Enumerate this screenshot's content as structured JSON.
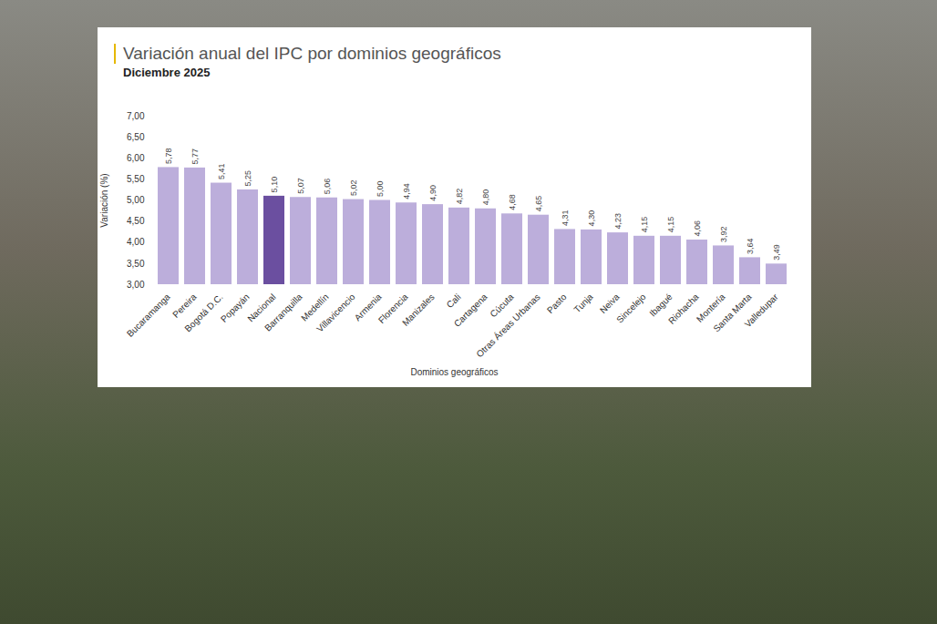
{
  "chart_data": {
    "type": "bar",
    "title": "Variación anual del IPC por dominios geográficos",
    "subtitle": "Diciembre 2025",
    "x_label": "Dominios geográficos",
    "y_label": "Variación (%)",
    "categories": [
      "Bucaramanga",
      "Pereira",
      "Bogotá D.C.",
      "Popayán",
      "Nacional",
      "Barranquilla",
      "Medellín",
      "Villavicencio",
      "Armenia",
      "Florencia",
      "Manizales",
      "Cali",
      "Cartagena",
      "Cúcuta",
      "Otras Áreas Urbanas",
      "Pasto",
      "Tunja",
      "Neiva",
      "Sincelejo",
      "Ibagué",
      "Riohacha",
      "Montería",
      "Santa Marta",
      "Valledupar"
    ],
    "values": [
      5.78,
      5.77,
      5.41,
      5.25,
      5.1,
      5.07,
      5.06,
      5.02,
      5.0,
      4.94,
      4.9,
      4.82,
      4.8,
      4.68,
      4.65,
      4.31,
      4.3,
      4.23,
      4.15,
      4.15,
      4.06,
      3.92,
      3.64,
      3.49
    ],
    "value_labels": [
      "5,78",
      "5,77",
      "5,41",
      "5,25",
      "5,10",
      "5,07",
      "5,06",
      "5,02",
      "5,00",
      "4,94",
      "4,90",
      "4,82",
      "4,80",
      "4,68",
      "4,65",
      "4,31",
      "4,30",
      "4,23",
      "4,15",
      "4,15",
      "4,06",
      "3,92",
      "3,64",
      "3,49"
    ],
    "colors": [
      "#bcaedb",
      "#bcaedb",
      "#bcaedb",
      "#bcaedb",
      "#6b4fa0",
      "#bcaedb",
      "#bcaedb",
      "#bcaedb",
      "#bcaedb",
      "#bcaedb",
      "#bcaedb",
      "#bcaedb",
      "#bcaedb",
      "#bcaedb",
      "#bcaedb",
      "#bcaedb",
      "#bcaedb",
      "#bcaedb",
      "#bcaedb",
      "#bcaedb",
      "#bcaedb",
      "#bcaedb",
      "#bcaedb",
      "#bcaedb"
    ],
    "ylim": [
      3.0,
      7.0
    ],
    "yticks": [
      {
        "value": 3.0,
        "label": "3,00"
      },
      {
        "value": 3.5,
        "label": "3,50"
      },
      {
        "value": 4.0,
        "label": "4,00"
      },
      {
        "value": 4.5,
        "label": "4,50"
      },
      {
        "value": 5.0,
        "label": "5,00"
      },
      {
        "value": 5.5,
        "label": "5,50"
      },
      {
        "value": 6.0,
        "label": "6,00"
      },
      {
        "value": 6.5,
        "label": "6,50"
      },
      {
        "value": 7.0,
        "label": "7,00"
      }
    ],
    "grid": false,
    "data_labels": true
  }
}
